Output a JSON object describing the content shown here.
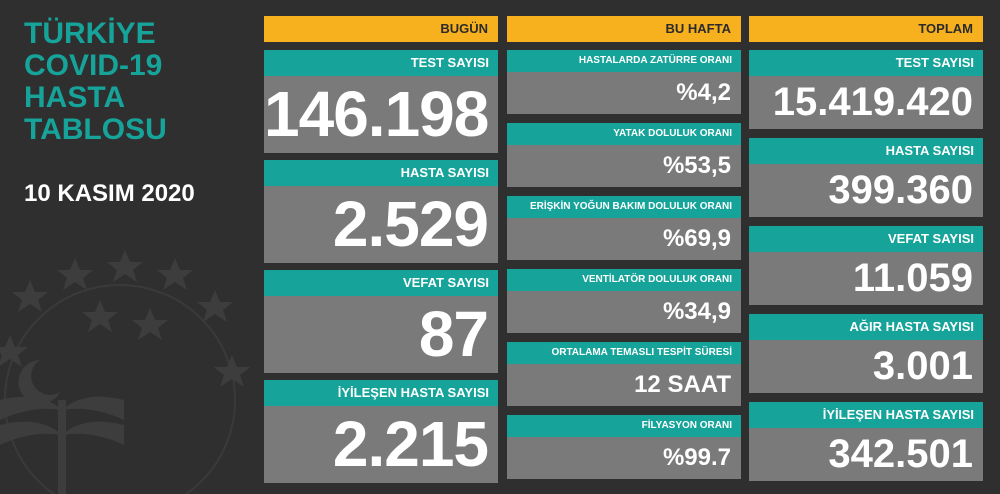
{
  "title_lines": [
    "TÜRKİYE",
    "COVID-19",
    "HASTA",
    "TABLOSU"
  ],
  "date": "10 KASIM 2020",
  "columns": {
    "today": {
      "header": "BUGÜN",
      "cards": [
        {
          "label": "TEST SAYISI",
          "value": "146.198"
        },
        {
          "label": "HASTA SAYISI",
          "value": "2.529"
        },
        {
          "label": "VEFAT SAYISI",
          "value": "87"
        },
        {
          "label": "İYİLEŞEN HASTA SAYISI",
          "value": "2.215"
        }
      ]
    },
    "this_week": {
      "header": "BU HAFTA",
      "cards": [
        {
          "label": "HASTALARDA ZATÜRRE ORANI",
          "value": "%4,2"
        },
        {
          "label": "YATAK DOLULUK ORANI",
          "value": "%53,5"
        },
        {
          "label": "ERİŞKİN YOĞUN BAKIM DOLULUK ORANI",
          "value": "%69,9"
        },
        {
          "label": "VENTİLATÖR DOLULUK ORANI",
          "value": "%34,9"
        },
        {
          "label": "ORTALAMA TEMASLI TESPİT SÜRESİ",
          "value": "12 SAAT"
        },
        {
          "label": "FİLYASYON ORANI",
          "value": "%99.7"
        }
      ]
    },
    "total": {
      "header": "TOPLAM",
      "cards": [
        {
          "label": "TEST SAYISI",
          "value": "15.419.420"
        },
        {
          "label": "HASTA SAYISI",
          "value": "399.360"
        },
        {
          "label": "VEFAT SAYISI",
          "value": "11.059"
        },
        {
          "label": "AĞIR HASTA SAYISI",
          "value": "3.001"
        },
        {
          "label": "İYİLEŞEN HASTA SAYISI",
          "value": "342.501"
        }
      ]
    }
  },
  "colors": {
    "background": "#2f2f2f",
    "teal": "#16a39a",
    "header_orange": "#f7b11e",
    "card_grey": "#7a7a7a"
  },
  "icons": [
    "ministry-emblem-icon"
  ]
}
